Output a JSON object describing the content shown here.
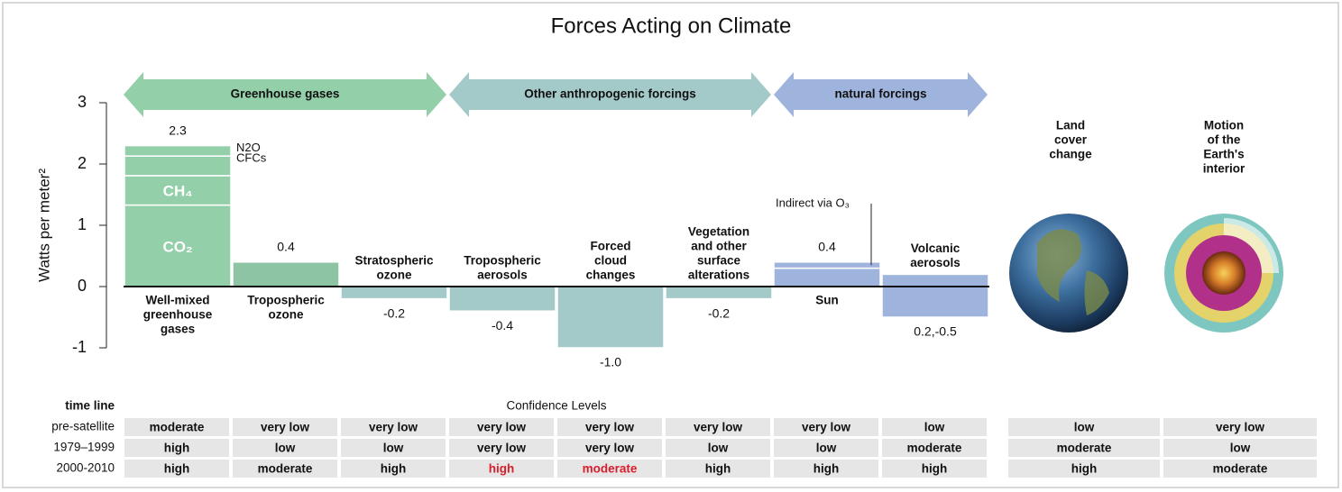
{
  "chart_data": {
    "type": "bar",
    "title": "Forces Acting on Climate",
    "y_label": "Watts per meter²",
    "ylim": [
      -1.1,
      3.1
    ],
    "yticks": [
      3,
      2,
      1,
      0,
      -1
    ],
    "groups": [
      {
        "label": "Greenhouse gases",
        "color": "#93cfa8"
      },
      {
        "label": "Other anthropogenic forcings",
        "color": "#a3c9c9"
      },
      {
        "label": "natural forcings",
        "color": "#9fb4dd"
      }
    ],
    "bars": [
      {
        "label": [
          "Well-mixed",
          "greenhouse",
          "gases"
        ],
        "color": "#93cfa8",
        "value_label": "2.3",
        "segments": [
          {
            "name": "CO₂",
            "value": 1.33
          },
          {
            "name": "CH₄",
            "value": 0.48
          },
          {
            "name": "CFCs",
            "value": 0.32
          },
          {
            "name": "N2O",
            "value": 0.17
          }
        ]
      },
      {
        "label": [
          "Tropospheric",
          "ozone"
        ],
        "color": "#8dc4a3",
        "value_label": "0.4",
        "segments": [
          {
            "value": 0.4
          }
        ]
      },
      {
        "label": [
          "Stratospheric",
          "ozone"
        ],
        "color": "#a3c9c9",
        "value_label": "-0.2",
        "segments": [
          {
            "value": -0.2
          }
        ]
      },
      {
        "label": [
          "Tropospheric",
          "aerosols"
        ],
        "color": "#a3c9c9",
        "value_label": "-0.4",
        "segments": [
          {
            "value": -0.4
          }
        ]
      },
      {
        "label": [
          "Forced",
          "cloud",
          "changes"
        ],
        "color": "#a3c9c9",
        "value_label": "-1.0",
        "segments": [
          {
            "value": -1.0
          }
        ]
      },
      {
        "label": [
          "Vegetation",
          "and other",
          "surface",
          "alterations"
        ],
        "color": "#a3c9c9",
        "value_label": "-0.2",
        "segments": [
          {
            "value": -0.2
          }
        ]
      },
      {
        "label": [
          "Sun"
        ],
        "color": "#9fb4dd",
        "value_label": "0.4",
        "segments": [
          {
            "value": 0.3
          },
          {
            "name": "Indirect via O₃",
            "value": 0.1
          }
        ]
      },
      {
        "label": [
          "Volcanic",
          "aerosols"
        ],
        "color": "#9fb4dd",
        "value_label": "0.2,-0.5",
        "segments": [
          {
            "value": 0.2
          },
          {
            "value": -0.5
          }
        ]
      }
    ],
    "extras": [
      {
        "label": [
          "Land",
          "cover",
          "change"
        ]
      },
      {
        "label": [
          "Motion",
          "of the",
          "Earth's",
          "interior"
        ]
      }
    ],
    "table": {
      "title": "Confidence Levels",
      "row_header": "time line",
      "highlight_color": "#d81e2c",
      "rows": [
        {
          "label": "pre-satellite",
          "cells": [
            "moderate",
            "very low",
            "very low",
            "very low",
            "very low",
            "very low",
            "very low",
            "low",
            "low",
            "very low"
          ]
        },
        {
          "label": "1979–1999",
          "cells": [
            "high",
            "low",
            "low",
            "very low",
            "very low",
            "low",
            "low",
            "moderate",
            "moderate",
            "low"
          ]
        },
        {
          "label": "2000-2010",
          "cells": [
            "high",
            "moderate",
            "high",
            {
              "text": "high",
              "highlight": true
            },
            {
              "text": "moderate",
              "highlight": true
            },
            "high",
            "high",
            "high",
            "high",
            "moderate"
          ]
        }
      ]
    }
  }
}
